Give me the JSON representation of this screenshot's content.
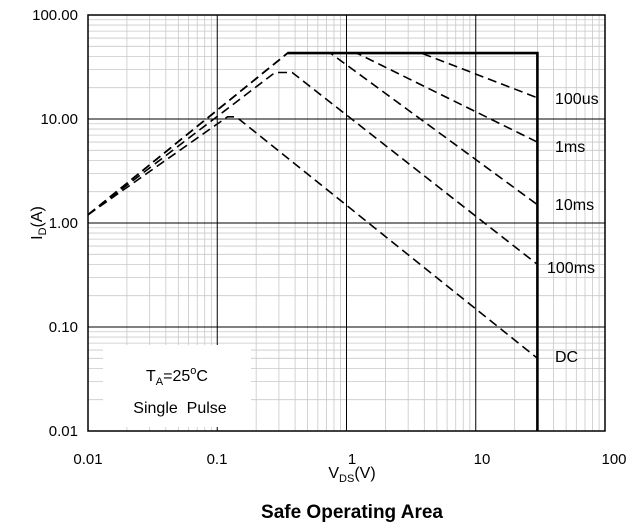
{
  "chart_data": {
    "type": "line",
    "title": "Safe Operating Area",
    "xlabel": {
      "main": "V",
      "sub": "DS",
      "unit": "(V)"
    },
    "ylabel": {
      "main": "I",
      "sub": "D",
      "unit": "(A)"
    },
    "xscale": "log",
    "yscale": "log",
    "xlim": [
      0.01,
      100
    ],
    "ylim": [
      0.01,
      100
    ],
    "grid": true,
    "x_tick_labels": [
      "0.01",
      "0.1",
      "1",
      "10",
      "100"
    ],
    "y_tick_labels": [
      "100.00",
      "10.00",
      "1.00",
      "0.10",
      "0.01"
    ],
    "series": [
      {
        "name": "100us",
        "style": "dashed",
        "points": [
          [
            0.01,
            1.2
          ],
          [
            0.35,
            43
          ],
          [
            3.8,
            43
          ],
          [
            30,
            16
          ]
        ]
      },
      {
        "name": "1ms",
        "style": "dashed",
        "points": [
          [
            0.01,
            1.2
          ],
          [
            0.35,
            43
          ],
          [
            1.2,
            43
          ],
          [
            30,
            6
          ]
        ]
      },
      {
        "name": "10ms",
        "style": "dashed",
        "points": [
          [
            0.01,
            1.2
          ],
          [
            0.35,
            43
          ],
          [
            0.75,
            43
          ],
          [
            30,
            1.5
          ]
        ]
      },
      {
        "name": "100ms",
        "style": "dashed",
        "points": [
          [
            0.01,
            1.2
          ],
          [
            0.28,
            28
          ],
          [
            0.38,
            28
          ],
          [
            30,
            0.4
          ]
        ]
      },
      {
        "name": "DC",
        "style": "dashed",
        "points": [
          [
            0.01,
            1.2
          ],
          [
            0.12,
            10.5
          ],
          [
            0.14,
            10.5
          ],
          [
            30,
            0.05
          ]
        ]
      },
      {
        "name": "",
        "style": "solid",
        "points": [
          [
            0.35,
            43
          ],
          [
            30,
            43
          ],
          [
            30,
            0.01
          ]
        ]
      }
    ],
    "annotation": {
      "condition_main": "T",
      "condition_sub": "A",
      "condition_value": "=25",
      "condition_sup": "o",
      "condition_unit": "C",
      "line2": "Single  Pulse"
    }
  }
}
